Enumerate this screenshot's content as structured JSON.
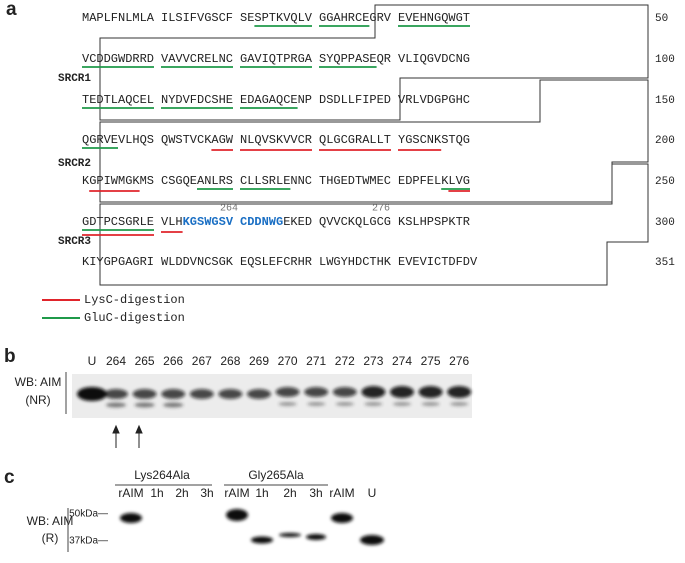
{
  "panel_a": {
    "label": "a",
    "rows": [
      {
        "groups": [
          "MAPLFNLMLA",
          "ILSIFVGSCF",
          "SESPTKVQLV",
          "GGAHRCEGRV",
          "EVEHNGQWGT"
        ],
        "number": "50"
      },
      {
        "groups": [
          "VCDDGWDRRD",
          "VAVVCRELNC",
          "GAVIQTPRGA",
          "SYQPPASEQR",
          "VLIQGVDCNG"
        ],
        "number": "100"
      },
      {
        "groups": [
          "TEDTLAQCEL",
          "NYDVFDCSHE",
          "EDAGAQCENP",
          "DSDLLFIPED",
          "VRLVDGPGHC"
        ],
        "number": "150"
      },
      {
        "groups": [
          "QGRVEVLHQS",
          "QWSTVCKAGW",
          "NLQVSKVVCR",
          "QLGCGRALLT",
          "YGSCNKSTQG"
        ],
        "number": "200"
      },
      {
        "groups": [
          "KGPIWMGKMS",
          "CSGQEANLRS",
          "CLLSRLENNC",
          "THGEDTWMEC",
          "EDPFELKLVG"
        ],
        "number": "250"
      },
      {
        "groups": [
          "GDTPCSGRLE",
          [
            {
              "text": "VLH"
            },
            {
              "text": "KGSWGSV",
              "highlight": true
            }
          ],
          [
            {
              "text": "CDDNWG",
              "highlight": true
            },
            {
              "text": "EKED"
            }
          ],
          "QVVCKQLGCG",
          "KSLHPSPKTR"
        ],
        "number": "300"
      },
      {
        "groups": [
          "KIYGPGAGRI",
          "WLDDVNCSGK",
          "EQSLEFCRHR",
          "LWGYHDCTHK",
          "EVEVICTDFDV"
        ],
        "number": "351"
      }
    ],
    "domains": [
      "SRCR1",
      "SRCR2",
      "SRCR3"
    ],
    "markers": [
      "264",
      "276"
    ],
    "legend": [
      {
        "label": "LysC-digestion",
        "color": "#e0242b"
      },
      {
        "label": "GluC-digestion",
        "color": "#1f9a4a"
      }
    ]
  },
  "panel_b": {
    "label": "b",
    "lanes": [
      "U",
      "264",
      "265",
      "266",
      "267",
      "268",
      "269",
      "270",
      "271",
      "272",
      "273",
      "274",
      "275",
      "276"
    ],
    "ylabel": [
      "WB: AIM",
      "(NR)"
    ]
  },
  "panel_c": {
    "label": "c",
    "groups": [
      "Lys264Ala",
      "Gly265Ala"
    ],
    "lanes": [
      "rAIM",
      "1h",
      "2h",
      "3h",
      "rAIM",
      "1h",
      "2h",
      "3h",
      "rAIM",
      "U"
    ],
    "markers": [
      "50kDa—",
      "37kDa—"
    ],
    "ylabel": [
      "WB: AIM",
      "(R)"
    ]
  }
}
